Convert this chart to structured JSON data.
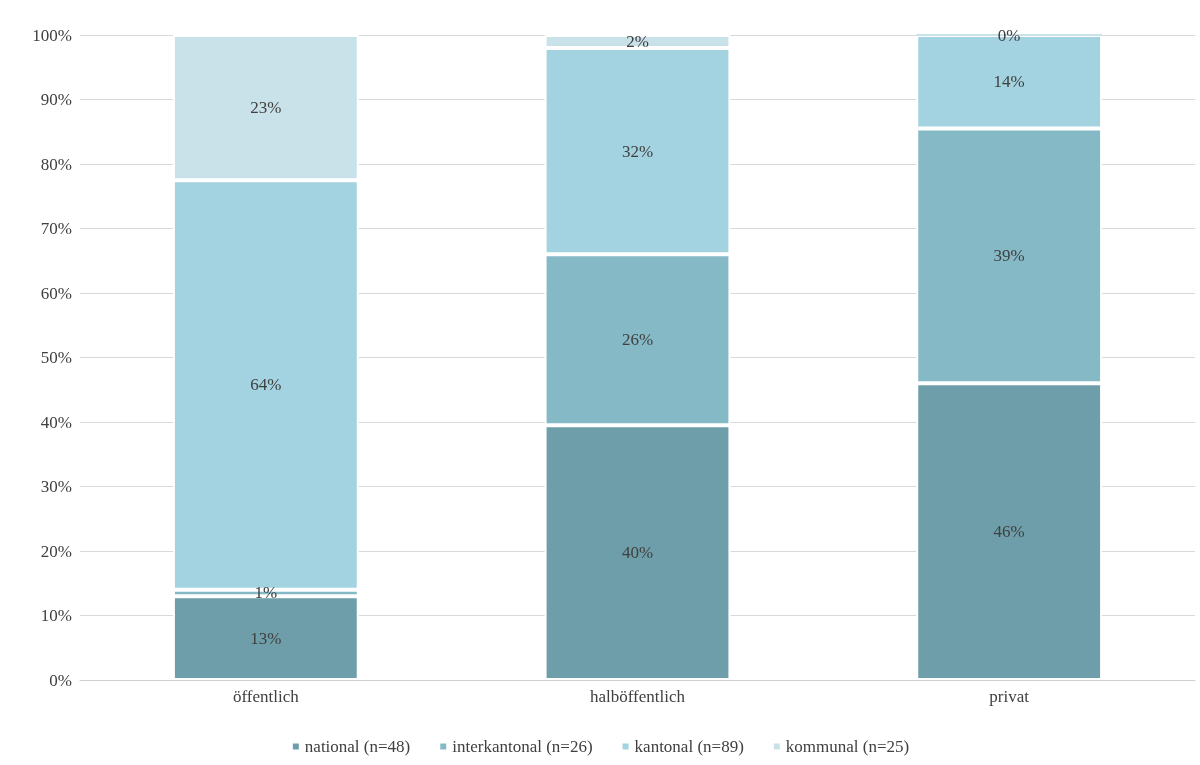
{
  "chart_data": {
    "type": "bar",
    "stacked": true,
    "categories": [
      "öffentlich",
      "halböffentlich",
      "privat"
    ],
    "series": [
      {
        "name": "national (n=48)",
        "color": "#6e9ea9",
        "values": [
          13,
          39.5,
          46
        ],
        "value_labels": [
          "13%",
          "40%",
          "46%"
        ]
      },
      {
        "name": "interkantonal (n=26)",
        "color": "#86b9c6",
        "values": [
          1,
          26.5,
          39.5
        ],
        "value_labels": [
          "1%",
          "26%",
          "39%"
        ]
      },
      {
        "name": "kantonal (n=89)",
        "color": "#a3d3e0",
        "values": [
          63.5,
          32,
          14.5
        ],
        "value_labels": [
          "64%",
          "32%",
          "14%"
        ]
      },
      {
        "name": "kommunal (n=25)",
        "color": "#c9e2ea",
        "values": [
          22.5,
          2,
          0
        ],
        "value_labels": [
          "23%",
          "2%",
          "0%"
        ]
      }
    ],
    "ylim": [
      0,
      100
    ],
    "yticks": [
      {
        "value": 0,
        "label": "0%"
      },
      {
        "value": 10,
        "label": "10%"
      },
      {
        "value": 20,
        "label": "20%"
      },
      {
        "value": 30,
        "label": "30%"
      },
      {
        "value": 40,
        "label": "40%"
      },
      {
        "value": 50,
        "label": "50%"
      },
      {
        "value": 60,
        "label": "60%"
      },
      {
        "value": 70,
        "label": "70%"
      },
      {
        "value": 80,
        "label": "80%"
      },
      {
        "value": 90,
        "label": "90%"
      },
      {
        "value": 100,
        "label": "100%"
      }
    ],
    "grid": "y",
    "legend": "bottom"
  }
}
